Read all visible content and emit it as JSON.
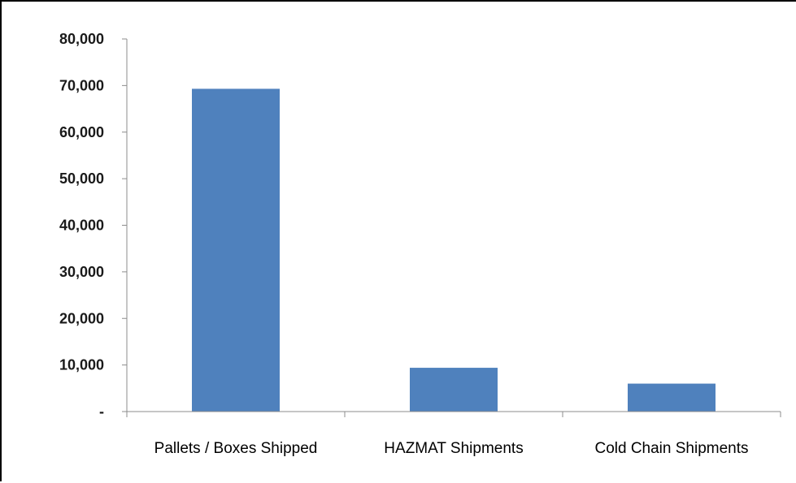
{
  "chart_data": {
    "type": "bar",
    "title": "",
    "xlabel": "",
    "ylabel": "",
    "categories": [
      "Pallets / Boxes Shipped",
      "HAZMAT Shipments",
      "Cold Chain Shipments"
    ],
    "values": [
      69300,
      9400,
      6000
    ],
    "ylim": [
      0,
      80000
    ],
    "yticks": [
      0,
      10000,
      20000,
      30000,
      40000,
      50000,
      60000,
      70000,
      80000
    ],
    "ytick_labels": [
      "-",
      "10,000",
      "20,000",
      "30,000",
      "40,000",
      "50,000",
      "60,000",
      "70,000",
      "80,000"
    ],
    "bar_color": "#4F81BD",
    "grid": false,
    "legend": "none"
  }
}
